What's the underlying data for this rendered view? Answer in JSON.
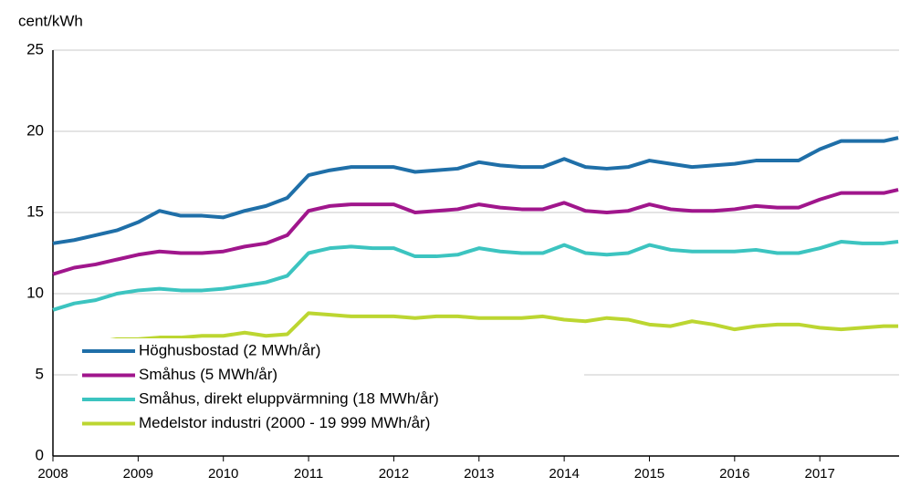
{
  "chart_data": {
    "type": "line",
    "y_label": "cent/kWh",
    "x": [
      2008,
      2008.25,
      2008.5,
      2008.75,
      2009,
      2009.25,
      2009.5,
      2009.75,
      2010,
      2010.25,
      2010.5,
      2010.75,
      2011,
      2011.25,
      2011.5,
      2011.75,
      2012,
      2012.25,
      2012.5,
      2012.75,
      2013,
      2013.25,
      2013.5,
      2013.75,
      2014,
      2014.25,
      2014.5,
      2014.75,
      2015,
      2015.25,
      2015.5,
      2015.75,
      2016,
      2016.25,
      2016.5,
      2016.75,
      2017,
      2017.25,
      2017.5,
      2017.75,
      2017.92
    ],
    "series": [
      {
        "name": "Höghusbostad (2 MWh/år)",
        "color": "#1f6fa8",
        "values": [
          13.1,
          13.3,
          13.6,
          13.9,
          14.4,
          15.1,
          14.8,
          14.8,
          14.7,
          15.1,
          15.4,
          15.9,
          17.3,
          17.6,
          17.8,
          17.8,
          17.8,
          17.5,
          17.6,
          17.7,
          18.1,
          17.9,
          17.8,
          17.8,
          18.3,
          17.8,
          17.7,
          17.8,
          18.2,
          18.0,
          17.8,
          17.9,
          18.0,
          18.2,
          18.2,
          18.2,
          18.9,
          19.4,
          19.4,
          19.4,
          19.6
        ]
      },
      {
        "name": "Småhus (5 MWh/år)",
        "color": "#a0168c",
        "values": [
          11.2,
          11.6,
          11.8,
          12.1,
          12.4,
          12.6,
          12.5,
          12.5,
          12.6,
          12.9,
          13.1,
          13.6,
          15.1,
          15.4,
          15.5,
          15.5,
          15.5,
          15.0,
          15.1,
          15.2,
          15.5,
          15.3,
          15.2,
          15.2,
          15.6,
          15.1,
          15.0,
          15.1,
          15.5,
          15.2,
          15.1,
          15.1,
          15.2,
          15.4,
          15.3,
          15.3,
          15.8,
          16.2,
          16.2,
          16.2,
          16.4
        ]
      },
      {
        "name": "Småhus, direkt eluppvärmning (18 MWh/år)",
        "color": "#3cc4c0",
        "values": [
          9.0,
          9.4,
          9.6,
          10.0,
          10.2,
          10.3,
          10.2,
          10.2,
          10.3,
          10.5,
          10.7,
          11.1,
          12.5,
          12.8,
          12.9,
          12.8,
          12.8,
          12.3,
          12.3,
          12.4,
          12.8,
          12.6,
          12.5,
          12.5,
          13.0,
          12.5,
          12.4,
          12.5,
          13.0,
          12.7,
          12.6,
          12.6,
          12.6,
          12.7,
          12.5,
          12.5,
          12.8,
          13.2,
          13.1,
          13.1,
          13.2
        ]
      },
      {
        "name": "Medelstor industri (2000 - 19 999 MWh/år)",
        "color": "#bcd631",
        "values": [
          null,
          null,
          7.0,
          7.2,
          7.2,
          7.3,
          7.3,
          7.4,
          7.4,
          7.6,
          7.4,
          7.5,
          8.8,
          8.7,
          8.6,
          8.6,
          8.6,
          8.5,
          8.6,
          8.6,
          8.5,
          8.5,
          8.5,
          8.6,
          8.4,
          8.3,
          8.5,
          8.4,
          8.1,
          8.0,
          8.3,
          8.1,
          7.8,
          8.0,
          8.1,
          8.1,
          7.9,
          7.8,
          7.9,
          8.0,
          8.0
        ]
      }
    ],
    "xlim": [
      2008,
      2017.93
    ],
    "xticks": [
      2008,
      2009,
      2010,
      2011,
      2012,
      2013,
      2014,
      2015,
      2016,
      2017
    ],
    "ylim": [
      0,
      25
    ],
    "yticks": [
      0,
      5,
      10,
      15,
      20,
      25
    ],
    "grid": true,
    "legend": "lower left"
  }
}
